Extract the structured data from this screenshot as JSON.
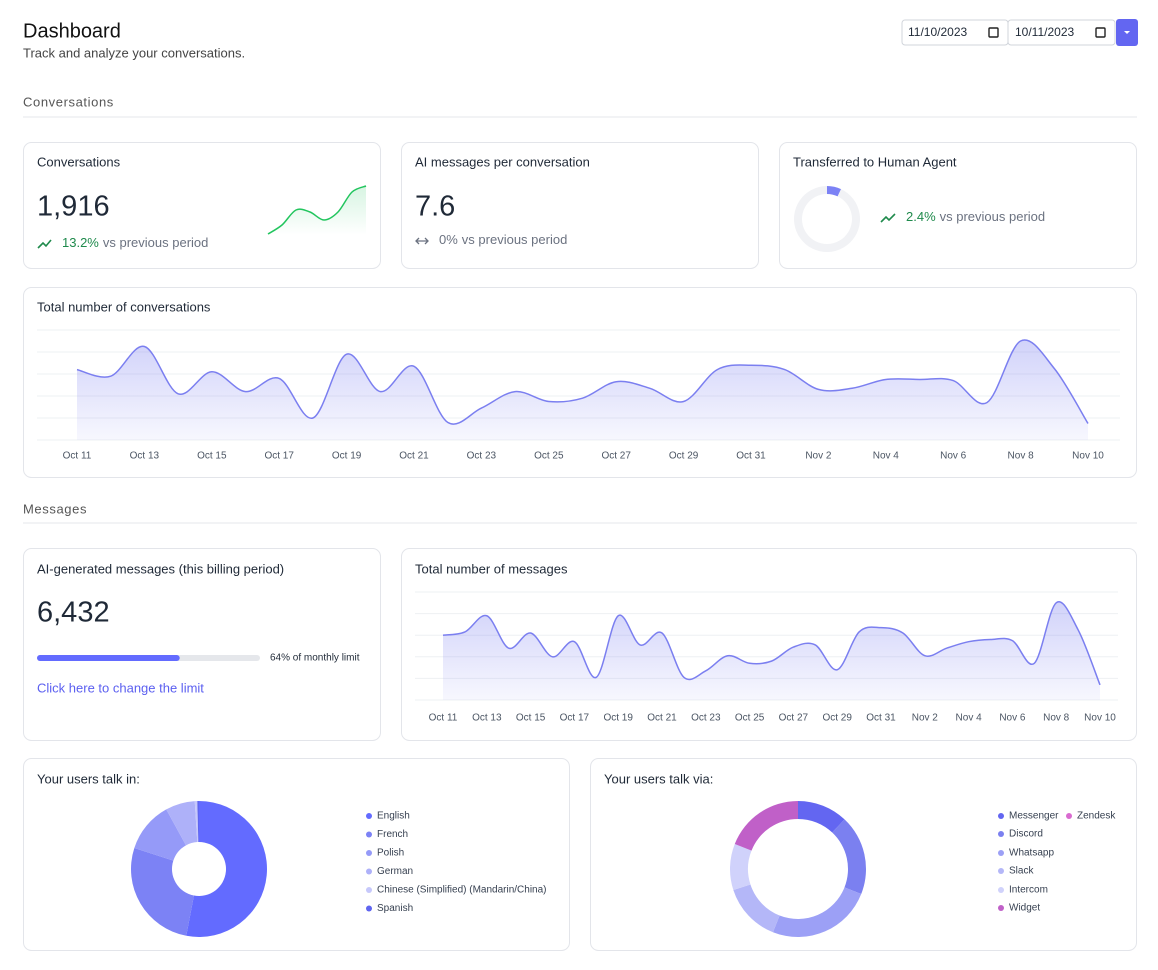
{
  "header": {
    "title": "Dashboard",
    "subtitle": "Track and analyze your conversations.",
    "date_from": "11/10/2023",
    "date_to": "10/11/2023"
  },
  "sections": [
    "Conversations",
    "Messages"
  ],
  "kpis": [
    {
      "title": "Conversations",
      "value": "1,916",
      "change": "13.2%",
      "change_label": "vs previous period",
      "sparkline": {
        "values": [
          2,
          20,
          50,
          46,
          30,
          46,
          86,
          98
        ],
        "ylim": [
          0,
          100
        ],
        "color": "#22c55e"
      }
    },
    {
      "title": "AI messages per conversation",
      "value": "7.6",
      "change": "0%",
      "change_label": "vs previous period"
    },
    {
      "title": "Transferred to Human Agent",
      "change": "2.4%",
      "change_label": "vs previous period",
      "donut": {
        "values": [
          7,
          93
        ],
        "colors": [
          "#7c82f5",
          "#f1f2f5"
        ]
      }
    }
  ],
  "billing": {
    "title": "AI-generated messages (this billing period)",
    "value": "6,432",
    "progress": {
      "values": [
        64
      ],
      "xlim": [
        0,
        100
      ],
      "color": "#636bff"
    },
    "progress_label": "64% of monthly limit",
    "link": "Click here to change the limit"
  },
  "chart_data": [
    {
      "type": "area",
      "title": "Total number of conversations",
      "categories": [
        "Oct 11",
        null,
        "Oct 13",
        null,
        "Oct 15",
        null,
        "Oct 17",
        null,
        "Oct 19",
        null,
        "Oct 21",
        null,
        "Oct 23",
        null,
        "Oct 25",
        null,
        "Oct 27",
        null,
        "Oct 29",
        null,
        "Oct 31",
        null,
        "Nov 2",
        null,
        "Nov 4",
        null,
        "Nov 6",
        null,
        "Nov 8",
        null,
        "Nov 10"
      ],
      "values": [
        64,
        58,
        85,
        42,
        62,
        44,
        56,
        20,
        78,
        44,
        67,
        16,
        29,
        44,
        35,
        38,
        53,
        47,
        35,
        64,
        68,
        64,
        46,
        47,
        55,
        55,
        54,
        34,
        90,
        65,
        15
      ],
      "color": "#7b7ff0",
      "ylim": [
        0,
        100
      ],
      "yticks": [
        0,
        20,
        40,
        60,
        80,
        100
      ],
      "grid": true
    },
    {
      "type": "area",
      "title": "Total number of messages",
      "categories": [
        "Oct 11",
        null,
        "Oct 13",
        null,
        "Oct 15",
        null,
        "Oct 17",
        null,
        "Oct 19",
        null,
        "Oct 21",
        null,
        "Oct 23",
        null,
        "Oct 25",
        null,
        "Oct 27",
        null,
        "Oct 29",
        null,
        "Oct 31",
        null,
        "Nov 2",
        null,
        "Nov 4",
        null,
        "Nov 6",
        null,
        "Nov 8",
        null,
        "Nov 10"
      ],
      "values": [
        60,
        63,
        78,
        48,
        62,
        40,
        54,
        21,
        78,
        51,
        62,
        21,
        27,
        41,
        34,
        36,
        49,
        51,
        28,
        63,
        67,
        62,
        41,
        48,
        54,
        56,
        55,
        34,
        90,
        65,
        14
      ],
      "color": "#7b7ff0",
      "ylim": [
        0,
        100
      ],
      "yticks": [
        0,
        20,
        40,
        60,
        80,
        100
      ],
      "grid": true
    },
    {
      "type": "pie",
      "title": "Your users talk in:",
      "categories": [
        "English",
        "French",
        "Polish",
        "German",
        "Chinese (Simplified) (Mandarin/China)",
        "Spanish"
      ],
      "values": [
        53,
        27,
        12,
        7,
        0.6,
        0.4
      ],
      "colors": [
        "#636bff",
        "#7c82f5",
        "#959af8",
        "#aeb1f9",
        "#c6c8fb",
        "#5f65f0"
      ]
    },
    {
      "type": "pie",
      "title": "Your users talk via:",
      "categories": [
        "Messenger",
        "Zendesk",
        "Discord",
        "Whatsapp",
        "Slack",
        "Intercom",
        "Widget"
      ],
      "values": [
        12,
        0,
        19,
        25,
        14,
        11,
        19
      ],
      "colors": [
        "#6366f1",
        "#d96bd0",
        "#7b80f0",
        "#9ca0f6",
        "#b4b7f8",
        "#d0d2fb",
        "#c060c8"
      ]
    }
  ]
}
